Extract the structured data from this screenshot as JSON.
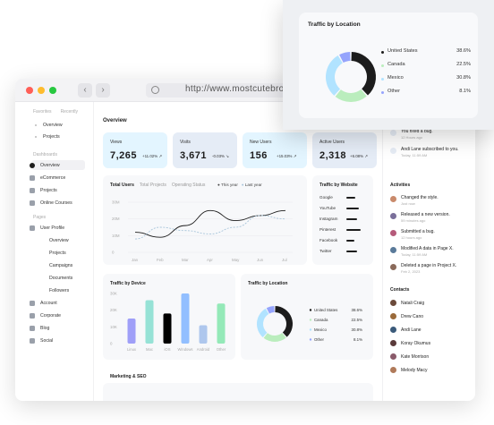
{
  "browser": {
    "url": "http://www.mostcutebrowsers"
  },
  "sidebar": {
    "tabs": [
      "Favorites",
      "Recently"
    ],
    "favorites": [
      "Overview",
      "Projects"
    ],
    "dashboards_heading": "Dashboards",
    "dashboards": [
      "Overview",
      "eCommerce",
      "Projects",
      "Online Courses"
    ],
    "pages_heading": "Pages",
    "pages": [
      "User Profile",
      "Overview",
      "Projects",
      "Campaigns",
      "Documents",
      "Followers",
      "Account",
      "Corporate",
      "Blog",
      "Social"
    ]
  },
  "main": {
    "title": "Overview",
    "stats": [
      {
        "label": "Views",
        "value": "7,265",
        "change": "+11.02%",
        "color": "#e3f5ff"
      },
      {
        "label": "Visits",
        "value": "3,671",
        "change": "-0.03%",
        "color": "#e5ecf6"
      },
      {
        "label": "New Users",
        "value": "156",
        "change": "+15.03%",
        "color": "#e3f5ff"
      },
      {
        "label": "Active Users",
        "value": "2,318",
        "change": "+6.08%",
        "color": "#e5ecf6"
      }
    ],
    "users_panel": {
      "tabs": [
        "Total Users",
        "Total Projects",
        "Operating Status"
      ],
      "legend": [
        "This year",
        "Last year"
      ]
    },
    "website_panel": {
      "title": "Traffic by Website",
      "sites": [
        "Google",
        "YouTube",
        "Instagram",
        "Pinterest",
        "Facebook",
        "Twitter"
      ]
    },
    "device_panel": {
      "title": "Traffic by Device"
    },
    "location_panel": {
      "title": "Traffic by Location"
    },
    "marketing_title": "Marketing & SEO"
  },
  "right": {
    "notifications": [
      {
        "title": "You fixed a bug.",
        "sub": "12 Hours ago"
      },
      {
        "title": "Andi Lane subscribed to you.",
        "sub": "Today, 11:59 AM"
      }
    ],
    "activities_heading": "Activities",
    "activities": [
      {
        "title": "Changed the style.",
        "sub": "Just now",
        "color": "#c98a6b"
      },
      {
        "title": "Released a new version.",
        "sub": "59 minutes ago",
        "color": "#7a6f9a"
      },
      {
        "title": "Submitted a bug.",
        "sub": "12 hours ago",
        "color": "#b55a7a"
      },
      {
        "title": "Modified A data in Page X.",
        "sub": "Today, 11:59 AM",
        "color": "#5a7a9a"
      },
      {
        "title": "Deleted a page in Project X.",
        "sub": "Feb 2, 2023",
        "color": "#8a6a5a"
      }
    ],
    "contacts_heading": "Contacts",
    "contacts": [
      {
        "name": "Natali Craig",
        "color": "#6b4a3a"
      },
      {
        "name": "Drew Cano",
        "color": "#9a6a3a"
      },
      {
        "name": "Andi Lane",
        "color": "#3a5a7a"
      },
      {
        "name": "Koray Okumus",
        "color": "#5a3a3a"
      },
      {
        "name": "Kate Morrison",
        "color": "#8a5a6a"
      },
      {
        "name": "Melody Macy",
        "color": "#b07a5a"
      }
    ]
  },
  "popup": {
    "title": "Traffic by Location"
  },
  "chart_data": [
    {
      "type": "line",
      "x": [
        "Jan",
        "Feb",
        "Mar",
        "Apr",
        "May",
        "Jun",
        "Jul"
      ],
      "ylim": [
        0,
        30
      ],
      "yticks": [
        "30M",
        "20M",
        "10M",
        "0"
      ],
      "series": [
        {
          "name": "This year",
          "values": [
            12,
            9,
            16,
            25,
            19,
            22,
            25
          ]
        },
        {
          "name": "Last year",
          "values": [
            8,
            15,
            13,
            11,
            15,
            22,
            20
          ]
        }
      ]
    },
    {
      "type": "bar",
      "title": "Traffic by Device",
      "categories": [
        "Linux",
        "Mac",
        "iOS",
        "Windows",
        "Android",
        "Other"
      ],
      "values": [
        15,
        26,
        18,
        30,
        11,
        24
      ],
      "ylim": [
        0,
        30
      ],
      "yticks": [
        "30K",
        "20K",
        "10K",
        "0"
      ],
      "colors": [
        "#9f9ff8",
        "#96e2d6",
        "#000000",
        "#92bfff",
        "#aec7ed",
        "#94e9b8"
      ]
    },
    {
      "type": "pie",
      "title": "Traffic by Location",
      "categories": [
        "United States",
        "Canada",
        "Mexico",
        "Other"
      ],
      "values": [
        38.6,
        22.5,
        30.8,
        8.1
      ],
      "labels": [
        "38.6%",
        "22.5%",
        "30.8%",
        "8.1%"
      ],
      "colors": [
        "#1c1c1c",
        "#baedbd",
        "#b1e3ff",
        "#95a4fc"
      ]
    }
  ]
}
